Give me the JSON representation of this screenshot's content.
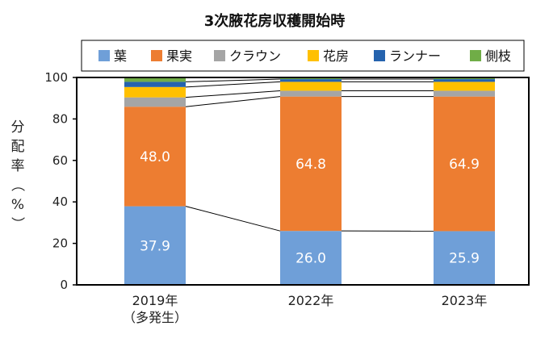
{
  "chart_data": {
    "type": "bar",
    "stacked": true,
    "title": "3次腋花房収穫開始時",
    "ylabel": "分配率（%）",
    "ylim": [
      0,
      100
    ],
    "yticks": [
      0,
      20,
      40,
      60,
      80,
      100
    ],
    "grid": false,
    "legend_position": "top",
    "categories": [
      [
        "2019年",
        "（多発生）"
      ],
      [
        "2022年"
      ],
      [
        "2023年"
      ]
    ],
    "series": [
      {
        "name": "葉",
        "color": "#6f9fd8",
        "values": [
          37.9,
          26.0,
          25.9
        ],
        "labels": [
          "37.9",
          "26.0",
          "25.9"
        ]
      },
      {
        "name": "果実",
        "color": "#ed7d31",
        "values": [
          48.0,
          64.8,
          64.9
        ],
        "labels": [
          "48.0",
          "64.8",
          "64.9"
        ]
      },
      {
        "name": "クラウン",
        "color": "#a5a5a5",
        "values": [
          4.5,
          2.8,
          2.8
        ],
        "labels": [
          "",
          "",
          ""
        ]
      },
      {
        "name": "花房",
        "color": "#ffc000",
        "values": [
          5.0,
          4.3,
          4.3
        ],
        "labels": [
          "",
          "",
          ""
        ]
      },
      {
        "name": "ランナー",
        "color": "#2563ae",
        "values": [
          2.5,
          1.3,
          1.3
        ],
        "labels": [
          "",
          "",
          ""
        ]
      },
      {
        "name": "側枝",
        "color": "#70ad47",
        "values": [
          2.1,
          0.8,
          0.8
        ],
        "labels": [
          "",
          "",
          ""
        ]
      }
    ]
  }
}
